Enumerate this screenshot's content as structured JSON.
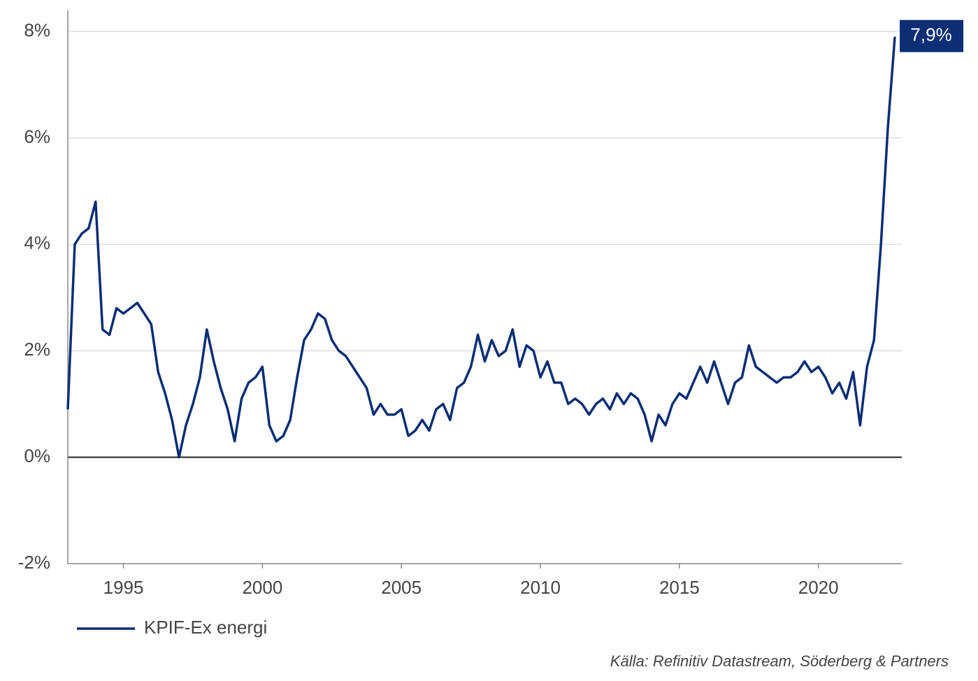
{
  "chart_data": {
    "type": "line",
    "xlim": [
      1993,
      2023
    ],
    "xticks": [
      1995,
      2000,
      2005,
      2010,
      2015,
      2020
    ],
    "ylim": [
      -2,
      8.4
    ],
    "yticks": [
      {
        "value": -2,
        "label": "-2%"
      },
      {
        "value": 0,
        "label": "0%"
      },
      {
        "value": 2,
        "label": "2%"
      },
      {
        "value": 4,
        "label": "4%"
      },
      {
        "value": 6,
        "label": "6%"
      },
      {
        "value": 8,
        "label": "8%"
      }
    ],
    "grid": true,
    "legend": "bottom-left",
    "source": "Källa: Refinitiv Datastream, Söderberg & Partners",
    "x": [
      1993,
      1993.25,
      1993.5,
      1993.75,
      1994,
      1994.25,
      1994.5,
      1994.75,
      1995,
      1995.25,
      1995.5,
      1995.75,
      1996,
      1996.25,
      1996.5,
      1996.75,
      1997,
      1997.25,
      1997.5,
      1997.75,
      1998,
      1998.25,
      1998.5,
      1998.75,
      1999,
      1999.25,
      1999.5,
      1999.75,
      2000,
      2000.25,
      2000.5,
      2000.75,
      2001,
      2001.25,
      2001.5,
      2001.75,
      2002,
      2002.25,
      2002.5,
      2002.75,
      2003,
      2003.25,
      2003.5,
      2003.75,
      2004,
      2004.25,
      2004.5,
      2004.75,
      2005,
      2005.25,
      2005.5,
      2005.75,
      2006,
      2006.25,
      2006.5,
      2006.75,
      2007,
      2007.25,
      2007.5,
      2007.75,
      2008,
      2008.25,
      2008.5,
      2008.75,
      2009,
      2009.25,
      2009.5,
      2009.75,
      2010,
      2010.25,
      2010.5,
      2010.75,
      2011,
      2011.25,
      2011.5,
      2011.75,
      2012,
      2012.25,
      2012.5,
      2012.75,
      2013,
      2013.25,
      2013.5,
      2013.75,
      2014,
      2014.25,
      2014.5,
      2014.75,
      2015,
      2015.25,
      2015.5,
      2015.75,
      2016,
      2016.25,
      2016.5,
      2016.75,
      2017,
      2017.25,
      2017.5,
      2017.75,
      2018,
      2018.25,
      2018.5,
      2018.75,
      2019,
      2019.25,
      2019.5,
      2019.75,
      2020,
      2020.25,
      2020.5,
      2020.75,
      2021,
      2021.25,
      2021.5,
      2021.75,
      2022,
      2022.25,
      2022.5,
      2022.75
    ],
    "series": [
      {
        "name": "KPIF-Ex energi",
        "color": "#0b2e74",
        "values": [
          0.9,
          4.0,
          4.2,
          4.3,
          4.8,
          2.4,
          2.3,
          2.8,
          2.7,
          2.8,
          2.9,
          2.7,
          2.5,
          1.6,
          1.2,
          0.7,
          0.0,
          0.6,
          1.0,
          1.5,
          2.4,
          1.8,
          1.3,
          0.9,
          0.3,
          1.1,
          1.4,
          1.5,
          1.7,
          0.6,
          0.3,
          0.4,
          0.7,
          1.5,
          2.2,
          2.4,
          2.7,
          2.6,
          2.2,
          2.0,
          1.9,
          1.7,
          1.5,
          1.3,
          0.8,
          1.0,
          0.8,
          0.8,
          0.9,
          0.4,
          0.5,
          0.7,
          0.5,
          0.9,
          1.0,
          0.7,
          1.3,
          1.4,
          1.7,
          2.3,
          1.8,
          2.2,
          1.9,
          2.0,
          2.4,
          1.7,
          2.1,
          2.0,
          1.5,
          1.8,
          1.4,
          1.4,
          1.0,
          1.1,
          1.0,
          0.8,
          1.0,
          1.1,
          0.9,
          1.2,
          1.0,
          1.2,
          1.1,
          0.8,
          0.3,
          0.8,
          0.6,
          1.0,
          1.2,
          1.1,
          1.4,
          1.7,
          1.4,
          1.8,
          1.4,
          1.0,
          1.4,
          1.5,
          2.1,
          1.7,
          1.6,
          1.5,
          1.4,
          1.5,
          1.5,
          1.6,
          1.8,
          1.6,
          1.7,
          1.5,
          1.2,
          1.4,
          1.1,
          1.6,
          0.6,
          1.7,
          2.2,
          4.0,
          6.2,
          7.9
        ],
        "value_labels": [
          null,
          null,
          null,
          null,
          null,
          null,
          null,
          null,
          null,
          null,
          null,
          null,
          null,
          null,
          null,
          null,
          null,
          null,
          null,
          null,
          null,
          null,
          null,
          null,
          null,
          null,
          null,
          null,
          null,
          null,
          null,
          null,
          null,
          null,
          null,
          null,
          null,
          null,
          null,
          null,
          null,
          null,
          null,
          null,
          null,
          null,
          null,
          null,
          null,
          null,
          null,
          null,
          null,
          null,
          null,
          null,
          null,
          null,
          null,
          null,
          null,
          null,
          null,
          null,
          null,
          null,
          null,
          null,
          null,
          null,
          null,
          null,
          null,
          null,
          null,
          null,
          null,
          null,
          null,
          null,
          null,
          null,
          null,
          null,
          null,
          null,
          null,
          null,
          null,
          null,
          null,
          null,
          null,
          null,
          null,
          null,
          null,
          null,
          null,
          null,
          null,
          null,
          null,
          null,
          null,
          null,
          null,
          null,
          null,
          null,
          null,
          null,
          null,
          null,
          null,
          null,
          null,
          null,
          null,
          "7,9%"
        ]
      }
    ]
  }
}
